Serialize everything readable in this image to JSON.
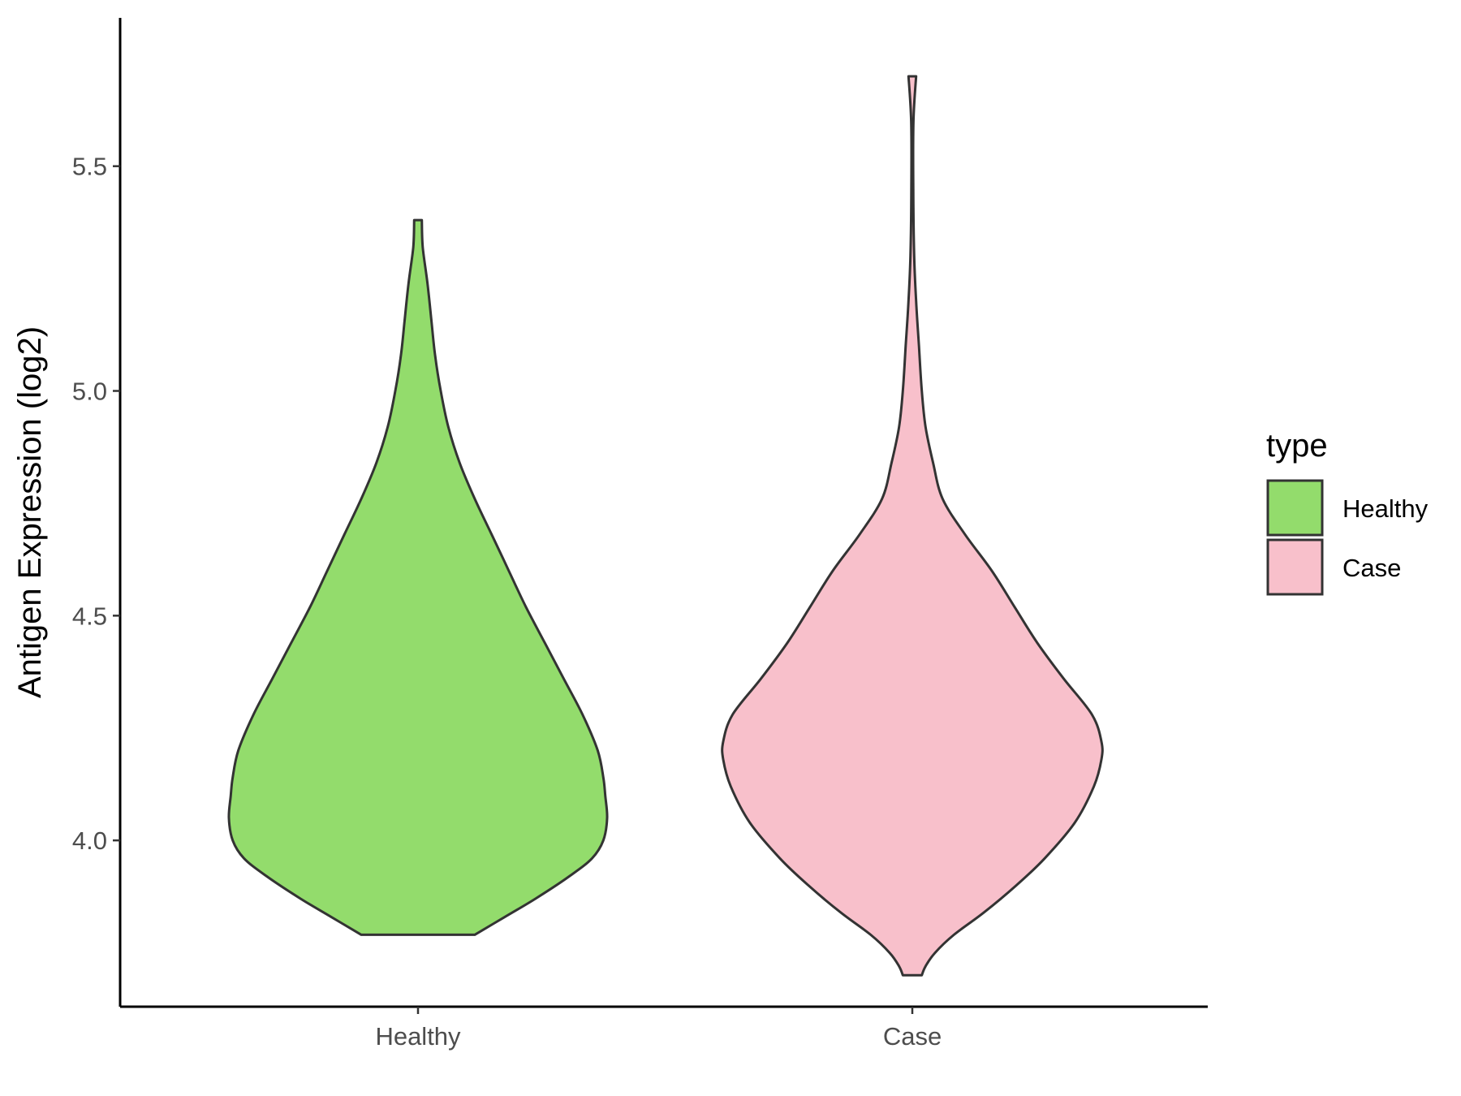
{
  "chart_data": {
    "type": "violin",
    "title": "",
    "xlabel": "",
    "ylabel": "Antigen Expression (log2)",
    "ylim": [
      3.63,
      5.83
    ],
    "yticks": [
      4.0,
      4.5,
      5.0,
      5.5
    ],
    "ytick_labels": [
      "4.0",
      "4.5",
      "5.0",
      "5.5"
    ],
    "categories": [
      "Healthy",
      "Case"
    ],
    "legend": {
      "title": "type",
      "placement": "right",
      "entries": [
        "Healthy",
        "Case"
      ]
    },
    "grid": false,
    "series": [
      {
        "name": "Healthy",
        "color": "#93DC6C",
        "min": 3.79,
        "max": 5.38,
        "profile": [
          [
            3.79,
            0.3
          ],
          [
            3.83,
            0.46
          ],
          [
            3.87,
            0.62
          ],
          [
            3.92,
            0.8
          ],
          [
            3.96,
            0.92
          ],
          [
            4.0,
            0.98
          ],
          [
            4.05,
            1.0
          ],
          [
            4.1,
            0.99
          ],
          [
            4.14,
            0.98
          ],
          [
            4.2,
            0.95
          ],
          [
            4.28,
            0.87
          ],
          [
            4.36,
            0.77
          ],
          [
            4.44,
            0.67
          ],
          [
            4.52,
            0.57
          ],
          [
            4.6,
            0.48
          ],
          [
            4.68,
            0.39
          ],
          [
            4.76,
            0.3
          ],
          [
            4.84,
            0.22
          ],
          [
            4.92,
            0.16
          ],
          [
            5.0,
            0.12
          ],
          [
            5.08,
            0.09
          ],
          [
            5.16,
            0.07
          ],
          [
            5.24,
            0.05
          ],
          [
            5.32,
            0.025
          ],
          [
            5.38,
            0.02
          ]
        ]
      },
      {
        "name": "Case",
        "color": "#F8C0CB",
        "min": 3.7,
        "max": 5.7,
        "profile": [
          [
            3.7,
            0.05
          ],
          [
            3.72,
            0.07
          ],
          [
            3.75,
            0.12
          ],
          [
            3.79,
            0.22
          ],
          [
            3.84,
            0.38
          ],
          [
            3.9,
            0.55
          ],
          [
            3.96,
            0.7
          ],
          [
            4.04,
            0.86
          ],
          [
            4.12,
            0.96
          ],
          [
            4.18,
            1.0
          ],
          [
            4.22,
            1.0
          ],
          [
            4.28,
            0.95
          ],
          [
            4.36,
            0.8
          ],
          [
            4.44,
            0.66
          ],
          [
            4.52,
            0.54
          ],
          [
            4.6,
            0.42
          ],
          [
            4.68,
            0.28
          ],
          [
            4.76,
            0.16
          ],
          [
            4.84,
            0.11
          ],
          [
            4.92,
            0.07
          ],
          [
            5.0,
            0.05
          ],
          [
            5.1,
            0.035
          ],
          [
            5.2,
            0.02
          ],
          [
            5.3,
            0.01
          ],
          [
            5.45,
            0.005
          ],
          [
            5.6,
            0.006
          ],
          [
            5.7,
            0.02
          ]
        ]
      }
    ]
  }
}
